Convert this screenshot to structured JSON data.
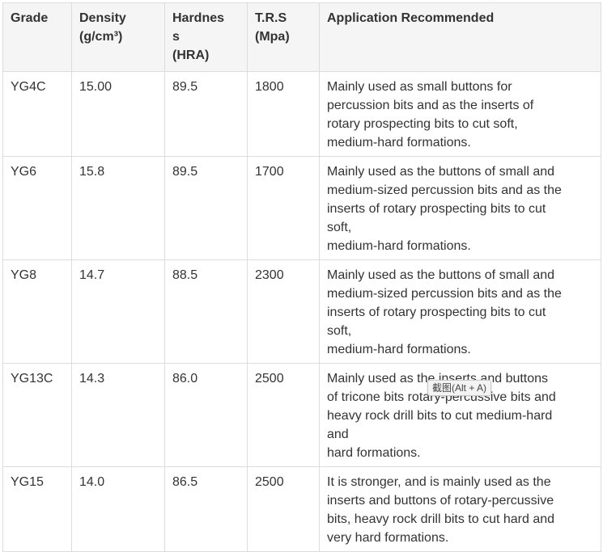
{
  "headers": {
    "grade": "Grade",
    "density": [
      "Density",
      "(g/cm³)"
    ],
    "hardness": [
      "Hardnes",
      "s",
      "(HRA)"
    ],
    "trs": [
      "T.R.S",
      "(Mpa)"
    ],
    "application": "Application Recommended"
  },
  "rows": [
    {
      "grade": "YG4C",
      "density": "15.00",
      "hardness": "89.5",
      "trs": "1800",
      "application": [
        "Mainly used as small buttons for",
        "percussion bits and as the inserts of",
        "rotary prospecting bits to cut soft,",
        "medium-hard formations."
      ]
    },
    {
      "grade": "YG6",
      "density": "15.8",
      "hardness": "89.5",
      "trs": "1700",
      "application": [
        "Mainly used as the buttons of small and",
        "medium-sized percussion bits and as the",
        "inserts of rotary prospecting bits to cut",
        "soft,",
        "medium-hard formations."
      ]
    },
    {
      "grade": "YG8",
      "density": "14.7",
      "hardness": "88.5",
      "trs": "2300",
      "application": [
        "Mainly used as the buttons of small and",
        "medium-sized percussion bits and as the",
        "inserts of rotary prospecting bits to cut",
        "soft,",
        "medium-hard formations."
      ]
    },
    {
      "grade": "YG13C",
      "density": "14.3",
      "hardness": "86.0",
      "trs": "2500",
      "application": [
        "Mainly used as the inserts and buttons",
        "of tricone bits rotary-percussive bits and",
        "heavy rock drill bits to cut medium-hard",
        "and",
        "hard formations."
      ]
    },
    {
      "grade": "YG15",
      "density": "14.0",
      "hardness": "86.5",
      "trs": "2500",
      "application": [
        "It is stronger, and is mainly used as the",
        "inserts and buttons of rotary-percussive",
        "bits, heavy rock drill bits to cut hard and",
        "very hard formations."
      ]
    }
  ],
  "tooltip": "截图(Alt + A)"
}
